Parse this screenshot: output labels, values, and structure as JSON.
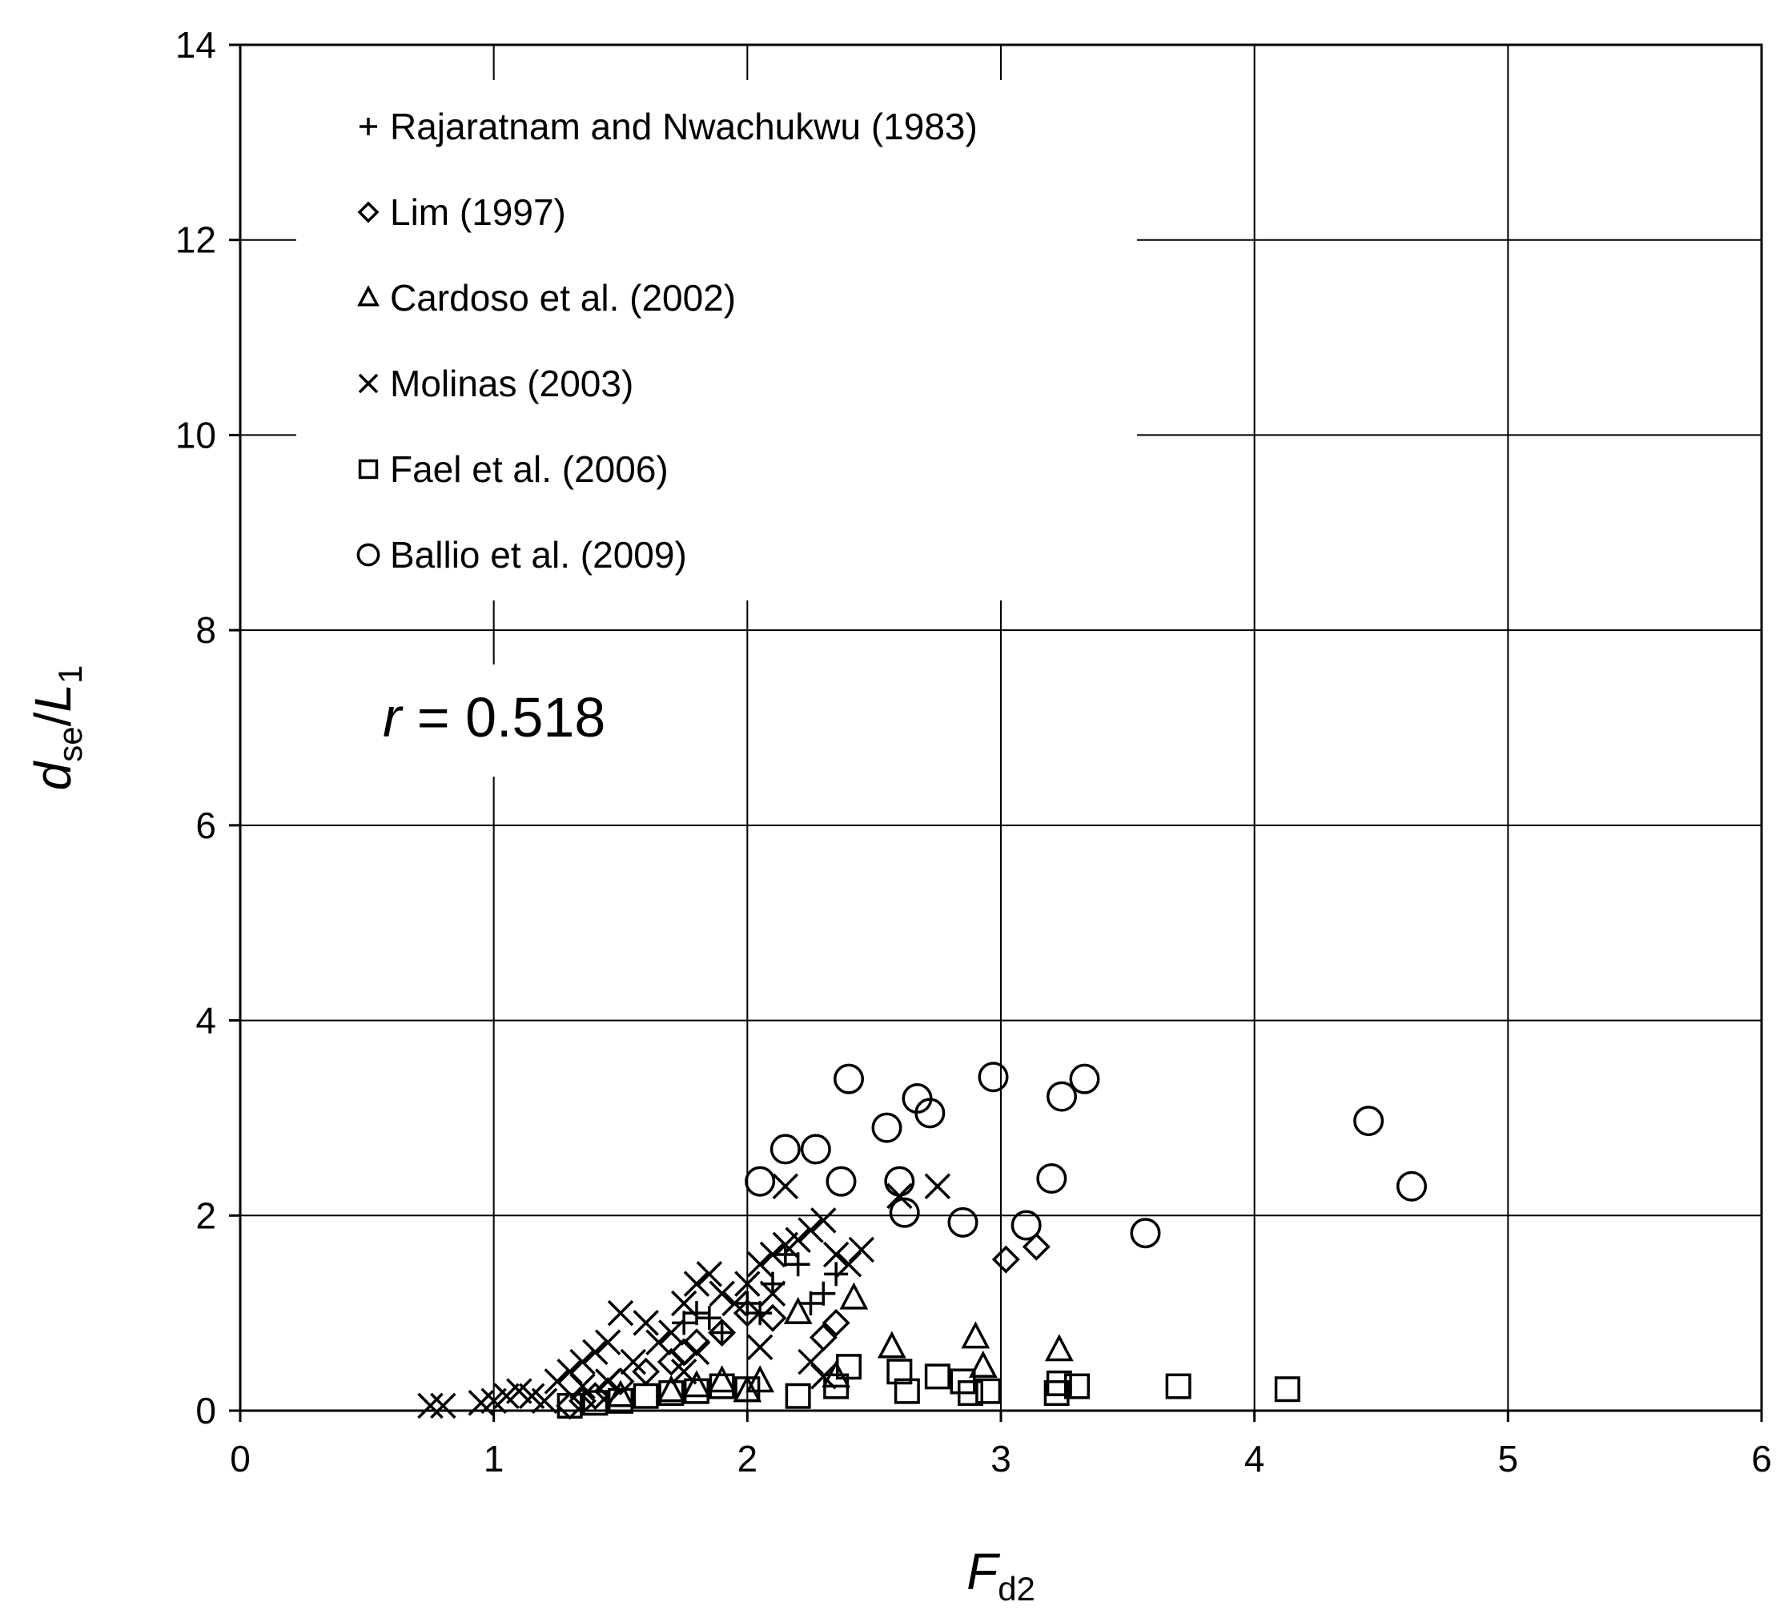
{
  "chart_data": {
    "type": "scatter",
    "xlabel": {
      "main": "F",
      "sub": "d2"
    },
    "ylabel": {
      "main": "d",
      "sub": "se",
      "mid": "/",
      "main2": "L",
      "sub2": "1"
    },
    "xlim": [
      0,
      6
    ],
    "ylim": [
      0,
      14
    ],
    "x_ticks": [
      "0",
      "1",
      "2",
      "3",
      "4",
      "5",
      "6"
    ],
    "y_ticks": [
      "0",
      "2",
      "4",
      "6",
      "8",
      "10",
      "12",
      "14"
    ],
    "grid": true,
    "legend_position": "top-left",
    "annotation": {
      "var": "r",
      "text": " = 0.518"
    },
    "series": [
      {
        "name": "Rajaratnam and Nwachukwu (1983)",
        "marker": "plus",
        "points": [
          [
            1.75,
            0.9
          ],
          [
            1.8,
            1.0
          ],
          [
            1.9,
            0.8
          ],
          [
            2.0,
            1.1
          ],
          [
            2.1,
            1.3
          ],
          [
            2.2,
            1.5
          ],
          [
            2.3,
            1.2
          ],
          [
            2.35,
            1.4
          ],
          [
            2.25,
            1.1
          ],
          [
            1.85,
            0.95
          ],
          [
            2.15,
            1.6
          ],
          [
            2.05,
            1.0
          ]
        ]
      },
      {
        "name": "Lim (1997)",
        "marker": "diamond",
        "points": [
          [
            1.3,
            0.05
          ],
          [
            1.35,
            0.1
          ],
          [
            1.4,
            0.15
          ],
          [
            1.45,
            0.2
          ],
          [
            1.5,
            0.3
          ],
          [
            1.6,
            0.4
          ],
          [
            1.7,
            0.5
          ],
          [
            1.75,
            0.6
          ],
          [
            1.8,
            0.7
          ],
          [
            1.9,
            0.8
          ],
          [
            2.0,
            1.0
          ],
          [
            2.1,
            0.95
          ],
          [
            2.3,
            0.75
          ],
          [
            2.35,
            0.9
          ],
          [
            3.02,
            1.55
          ],
          [
            3.14,
            1.68
          ]
        ]
      },
      {
        "name": "Cardoso et al. (2002)",
        "marker": "triangle",
        "points": [
          [
            1.5,
            0.15
          ],
          [
            1.7,
            0.2
          ],
          [
            1.8,
            0.25
          ],
          [
            1.9,
            0.3
          ],
          [
            2.0,
            0.2
          ],
          [
            2.05,
            0.3
          ],
          [
            2.2,
            1.0
          ],
          [
            2.35,
            0.35
          ],
          [
            2.42,
            1.15
          ],
          [
            2.57,
            0.65
          ],
          [
            2.9,
            0.75
          ],
          [
            2.93,
            0.45
          ],
          [
            3.23,
            0.62
          ]
        ]
      },
      {
        "name": "Molinas (2003)",
        "marker": "cross",
        "points": [
          [
            0.75,
            0.05
          ],
          [
            0.8,
            0.05
          ],
          [
            0.95,
            0.08
          ],
          [
            1.0,
            0.1
          ],
          [
            1.05,
            0.15
          ],
          [
            1.1,
            0.2
          ],
          [
            1.15,
            0.15
          ],
          [
            1.2,
            0.1
          ],
          [
            1.25,
            0.3
          ],
          [
            1.3,
            0.4
          ],
          [
            1.35,
            0.5
          ],
          [
            1.4,
            0.6
          ],
          [
            1.45,
            0.7
          ],
          [
            1.5,
            1.0
          ],
          [
            1.55,
            0.5
          ],
          [
            1.6,
            0.9
          ],
          [
            1.65,
            0.7
          ],
          [
            1.7,
            0.8
          ],
          [
            1.75,
            1.1
          ],
          [
            1.8,
            1.3
          ],
          [
            1.85,
            1.4
          ],
          [
            1.9,
            1.2
          ],
          [
            1.95,
            1.1
          ],
          [
            2.0,
            1.3
          ],
          [
            2.05,
            1.5
          ],
          [
            2.1,
            1.6
          ],
          [
            2.15,
            1.7
          ],
          [
            2.2,
            1.75
          ],
          [
            2.25,
            1.85
          ],
          [
            2.3,
            1.95
          ],
          [
            2.35,
            1.6
          ],
          [
            2.4,
            1.5
          ],
          [
            2.45,
            1.65
          ],
          [
            2.15,
            2.3
          ],
          [
            2.6,
            2.2
          ],
          [
            2.75,
            2.3
          ],
          [
            2.1,
            1.2
          ],
          [
            2.25,
            0.5
          ],
          [
            2.3,
            0.35
          ],
          [
            1.75,
            0.4
          ],
          [
            1.8,
            0.6
          ],
          [
            2.05,
            0.65
          ],
          [
            1.45,
            0.3
          ],
          [
            1.35,
            0.25
          ]
        ]
      },
      {
        "name": "Fael et al. (2006)",
        "marker": "square",
        "points": [
          [
            1.3,
            0.05
          ],
          [
            1.4,
            0.08
          ],
          [
            1.5,
            0.1
          ],
          [
            1.6,
            0.15
          ],
          [
            1.7,
            0.18
          ],
          [
            1.8,
            0.2
          ],
          [
            1.9,
            0.25
          ],
          [
            2.0,
            0.22
          ],
          [
            2.2,
            0.15
          ],
          [
            2.35,
            0.25
          ],
          [
            2.4,
            0.45
          ],
          [
            2.6,
            0.4
          ],
          [
            2.63,
            0.2
          ],
          [
            2.75,
            0.35
          ],
          [
            2.85,
            0.3
          ],
          [
            2.88,
            0.18
          ],
          [
            2.95,
            0.2
          ],
          [
            3.22,
            0.18
          ],
          [
            3.23,
            0.28
          ],
          [
            3.3,
            0.25
          ],
          [
            3.7,
            0.25
          ],
          [
            4.13,
            0.22
          ]
        ]
      },
      {
        "name": "Ballio et al. (2009)",
        "marker": "circle",
        "points": [
          [
            2.05,
            2.35
          ],
          [
            2.15,
            2.68
          ],
          [
            2.27,
            2.68
          ],
          [
            2.37,
            2.35
          ],
          [
            2.4,
            3.4
          ],
          [
            2.55,
            2.9
          ],
          [
            2.6,
            2.35
          ],
          [
            2.62,
            2.03
          ],
          [
            2.67,
            3.2
          ],
          [
            2.72,
            3.05
          ],
          [
            2.85,
            1.93
          ],
          [
            2.97,
            3.42
          ],
          [
            3.1,
            1.9
          ],
          [
            3.2,
            2.38
          ],
          [
            3.24,
            3.22
          ],
          [
            3.33,
            3.4
          ],
          [
            3.57,
            1.82
          ],
          [
            4.45,
            2.97
          ],
          [
            4.62,
            2.3
          ]
        ]
      }
    ]
  }
}
